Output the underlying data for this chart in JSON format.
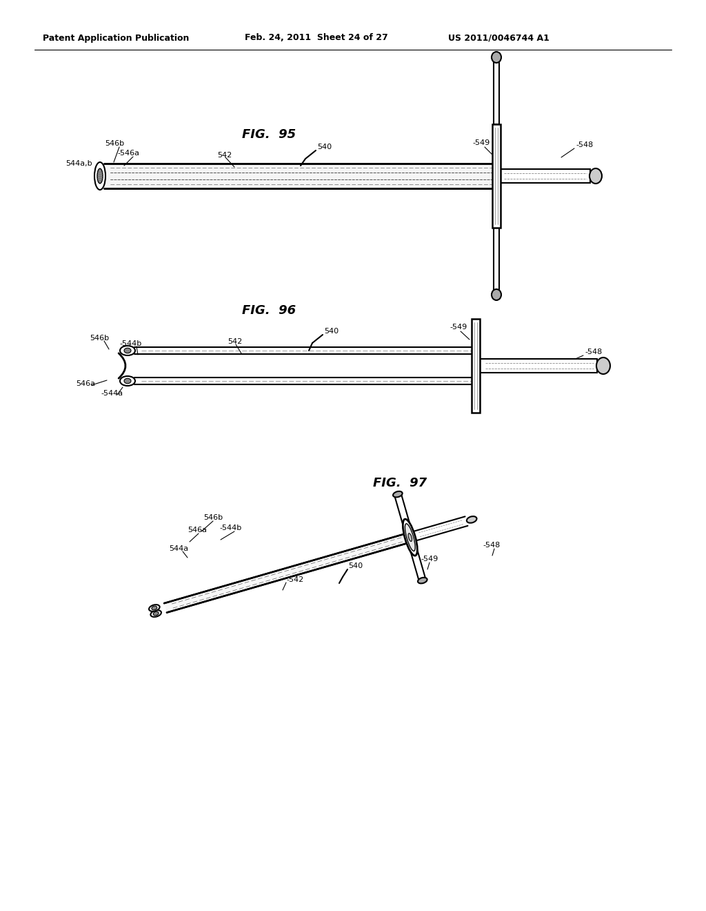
{
  "background_color": "#ffffff",
  "header_left": "Patent Application Publication",
  "header_middle": "Feb. 24, 2011  Sheet 24 of 27",
  "header_right": "US 2011/0046744 A1",
  "fig95_title": "FIG.  95",
  "fig96_title": "FIG.  96",
  "fig97_title": "FIG.  97",
  "line_color": "#000000",
  "text_color": "#000000"
}
